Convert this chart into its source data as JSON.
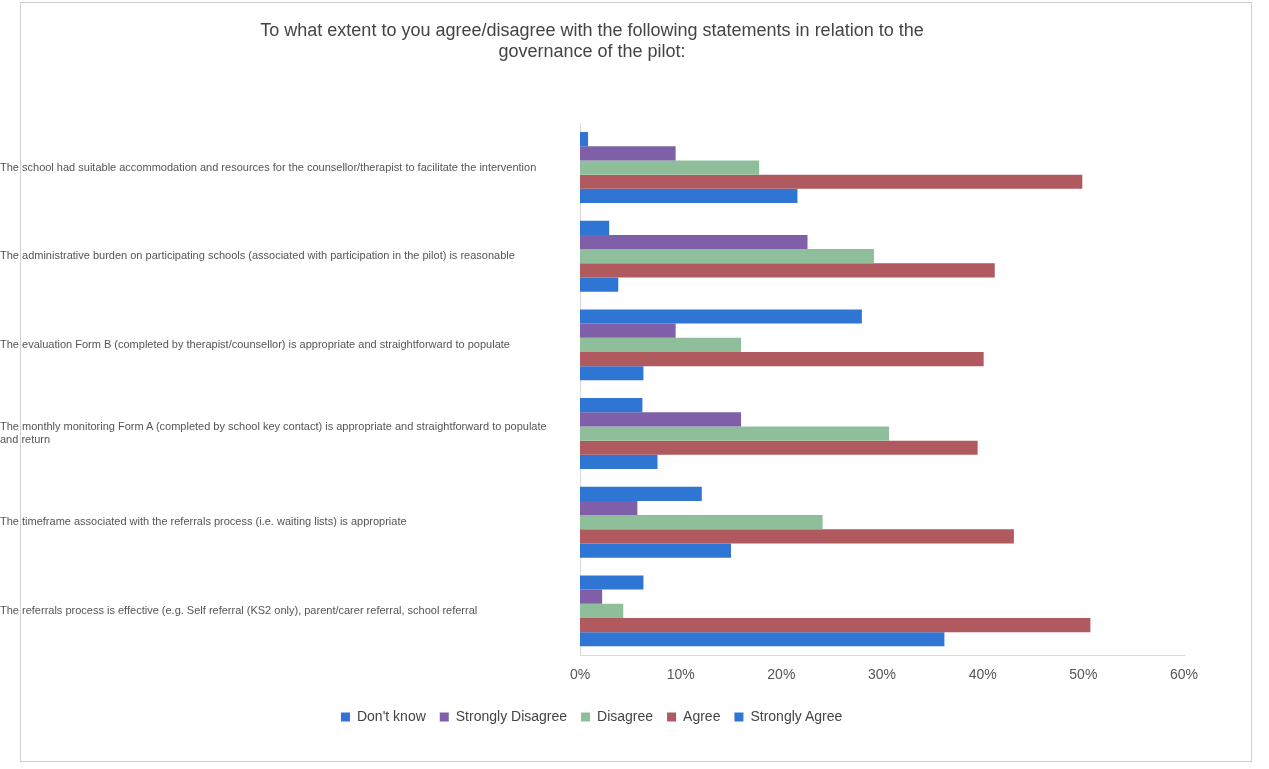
{
  "chart_data": {
    "type": "bar",
    "orientation": "horizontal",
    "title": "To what extent to you agree/disagree with the following statements in relation to the governance of the pilot:",
    "categories": [
      "The school had suitable accommodation and resources for the counsellor/therapist to facilitate the intervention",
      "The administrative burden on participating schools (associated with participation in the pilot) is reasonable",
      "The evaluation Form B (completed by therapist/counsellor) is appropriate and straightforward to populate",
      "The monthly monitoring Form A (completed by school key contact) is appropriate and straightforward to populate and return",
      "The timeframe associated with the referrals process (i.e. waiting lists) is appropriate",
      "The referrals process is effective (e.g. Self referral (KS2 only), parent/carer referral, school referral"
    ],
    "series": [
      {
        "name": "Don't know",
        "color": "#2e75d4",
        "values": [
          0.8,
          2.9,
          28,
          6.2,
          12.1,
          6.3
        ]
      },
      {
        "name": "Strongly Disagree",
        "color": "#7e5fa8",
        "values": [
          9.5,
          22.6,
          9.5,
          16,
          5.7,
          2.2
        ]
      },
      {
        "name": "Disagree",
        "color": "#8fbf9a",
        "values": [
          17.8,
          29.2,
          16,
          30.7,
          24.1,
          4.3
        ]
      },
      {
        "name": "Agree",
        "color": "#b0595f",
        "values": [
          49.9,
          41.2,
          40.1,
          39.5,
          43.1,
          50.7
        ]
      },
      {
        "name": "Strongly Agree",
        "color": "#2e75d4",
        "values": [
          21.6,
          3.8,
          6.3,
          7.7,
          15,
          36.2
        ]
      }
    ],
    "xlim": [
      0,
      60
    ],
    "xticks": [
      {
        "value": 0,
        "label": "0%"
      },
      {
        "value": 10,
        "label": "10%"
      },
      {
        "value": 20,
        "label": "20%"
      },
      {
        "value": 30,
        "label": "30%"
      },
      {
        "value": 40,
        "label": "40%"
      },
      {
        "value": 50,
        "label": "50%"
      },
      {
        "value": 60,
        "label": "60%"
      }
    ],
    "grid": false,
    "legend": "bottom"
  }
}
